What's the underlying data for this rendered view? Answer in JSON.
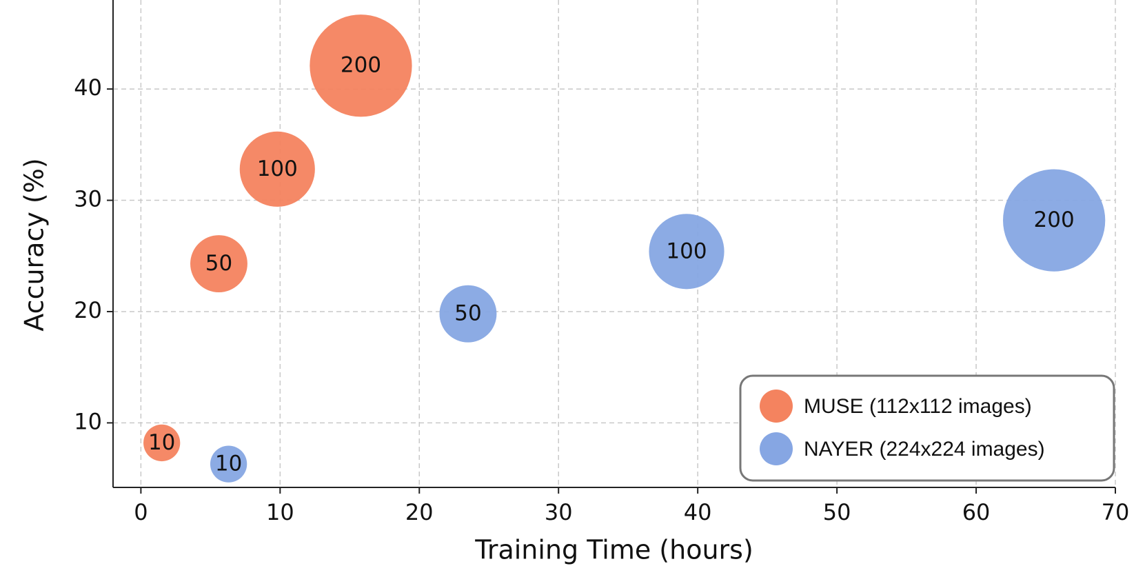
{
  "chart_data": {
    "type": "scatter",
    "x_label": "Training Time (hours)",
    "y_label": "Accuracy (%)",
    "xlim": [
      -2,
      70
    ],
    "ylim": [
      4.2,
      48
    ],
    "xticks": [
      0,
      10,
      20,
      30,
      40,
      50,
      60,
      70
    ],
    "yticks": [
      10,
      20,
      30,
      40
    ],
    "grid": true,
    "legend": "lower right",
    "series": [
      {
        "name": "MUSE (112x112 images)",
        "color": "#f4835f",
        "x": [
          1.5,
          5.6,
          9.8,
          15.8
        ],
        "values": [
          8.2,
          24.3,
          32.8,
          42.1
        ],
        "sizes": [
          10,
          50,
          100,
          200
        ]
      },
      {
        "name": "NAYER (224x224 images)",
        "color": "#86a6e3",
        "x": [
          6.3,
          23.5,
          39.2,
          65.6
        ],
        "values": [
          6.3,
          19.8,
          25.4,
          28.2
        ],
        "sizes": [
          10,
          50,
          100,
          200
        ]
      }
    ]
  }
}
